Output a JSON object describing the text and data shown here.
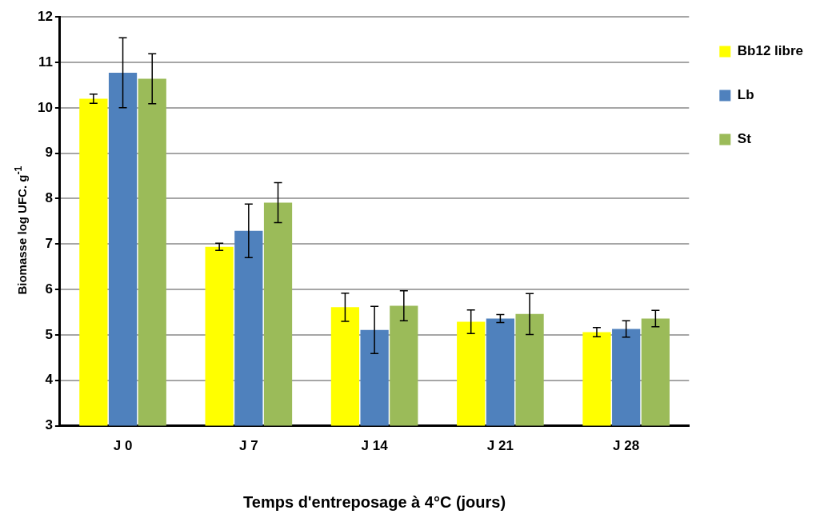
{
  "chart_data": {
    "type": "bar",
    "xlabel": "Temps d'entreposage à 4°C (jours)",
    "ylabel": "Biomasse log UFC. g$^{-1}$",
    "categories": [
      "J 0",
      "J 7",
      "J 14",
      "J 21",
      "J 28"
    ],
    "series": [
      {
        "name": "Bb12 libre",
        "color": "#ffff00",
        "values": [
          10.2,
          6.94,
          5.61,
          5.29,
          5.06
        ],
        "errors": [
          0.1,
          0.08,
          0.31,
          0.26,
          0.1
        ]
      },
      {
        "name": "Lb",
        "color": "#4f81bd",
        "values": [
          10.77,
          7.29,
          5.11,
          5.36,
          5.13
        ],
        "errors": [
          0.77,
          0.59,
          0.52,
          0.09,
          0.18
        ]
      },
      {
        "name": "St",
        "color": "#9bbb59",
        "values": [
          10.64,
          7.91,
          5.64,
          5.46,
          5.36
        ],
        "errors": [
          0.55,
          0.44,
          0.33,
          0.45,
          0.18
        ]
      }
    ],
    "ylim": [
      3,
      12
    ],
    "yticks": [
      3,
      4,
      5,
      6,
      7,
      8,
      9,
      10,
      11,
      12
    ],
    "grid": "y",
    "legend": "top right"
  }
}
